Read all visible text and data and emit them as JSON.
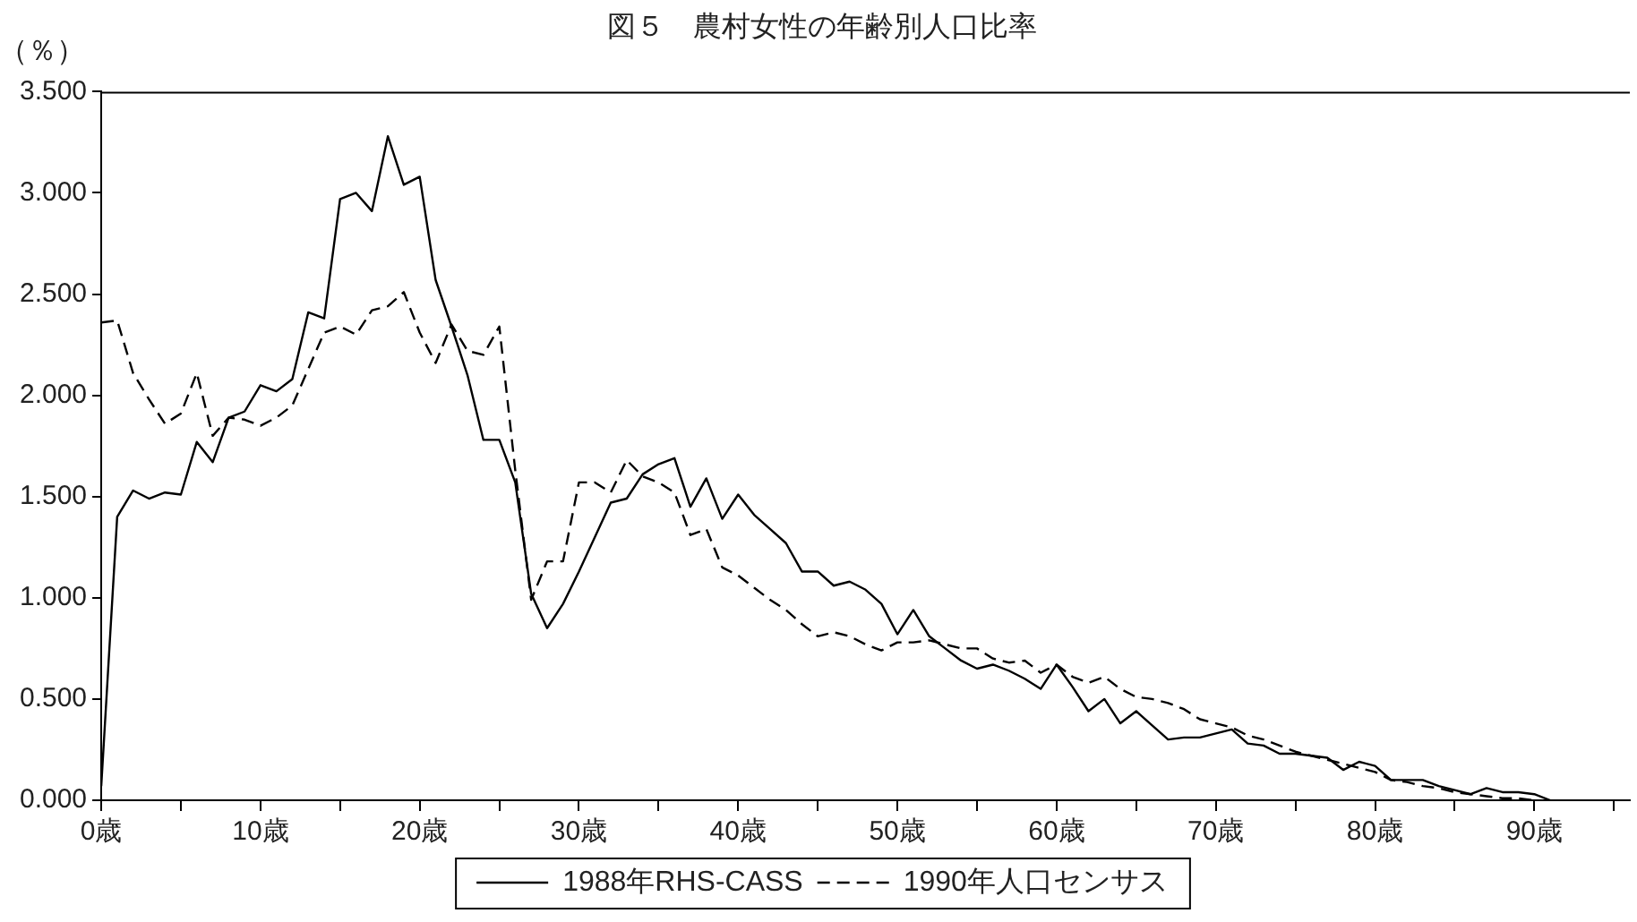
{
  "chart_data": {
    "type": "line",
    "title": "図５　農村女性の年齢別人口比率",
    "ylabel": "（％）",
    "x": [
      0,
      1,
      2,
      3,
      4,
      5,
      6,
      7,
      8,
      9,
      10,
      11,
      12,
      13,
      14,
      15,
      16,
      17,
      18,
      19,
      20,
      21,
      22,
      23,
      24,
      25,
      26,
      27,
      28,
      29,
      30,
      31,
      32,
      33,
      34,
      35,
      36,
      37,
      38,
      39,
      40,
      41,
      42,
      43,
      44,
      45,
      46,
      47,
      48,
      49,
      50,
      51,
      52,
      53,
      54,
      55,
      56,
      57,
      58,
      59,
      60,
      61,
      62,
      63,
      64,
      65,
      66,
      67,
      68,
      69,
      70,
      71,
      72,
      73,
      74,
      75,
      76,
      77,
      78,
      79,
      80,
      81,
      82,
      83,
      84,
      85,
      86,
      87,
      88,
      89,
      90,
      91
    ],
    "series": [
      {
        "name": "1988年RHS-CASS",
        "color": "#000000",
        "line_style": "solid",
        "values": [
          0.07,
          1.4,
          1.53,
          1.49,
          1.52,
          1.51,
          1.77,
          1.67,
          1.89,
          1.92,
          2.05,
          2.02,
          2.08,
          2.41,
          2.38,
          2.97,
          3.0,
          2.91,
          3.28,
          3.04,
          3.08,
          2.57,
          2.34,
          2.1,
          1.78,
          1.78,
          1.57,
          1.02,
          0.85,
          0.97,
          1.13,
          1.3,
          1.47,
          1.49,
          1.61,
          1.66,
          1.69,
          1.45,
          1.59,
          1.39,
          1.51,
          1.41,
          1.34,
          1.27,
          1.13,
          1.13,
          1.06,
          1.08,
          1.04,
          0.97,
          0.82,
          0.94,
          0.81,
          0.75,
          0.69,
          0.65,
          0.67,
          0.64,
          0.6,
          0.55,
          0.67,
          0.56,
          0.44,
          0.5,
          0.38,
          0.44,
          0.37,
          0.3,
          0.31,
          0.31,
          0.33,
          0.35,
          0.28,
          0.27,
          0.23,
          0.23,
          0.22,
          0.21,
          0.15,
          0.19,
          0.17,
          0.1,
          0.1,
          0.1,
          0.07,
          0.05,
          0.03,
          0.06,
          0.04,
          0.04,
          0.03,
          0.0
        ]
      },
      {
        "name": "1990年人口センサス",
        "color": "#000000",
        "line_style": "dashed",
        "values": [
          2.36,
          2.37,
          2.11,
          1.98,
          1.86,
          1.91,
          2.11,
          1.8,
          1.89,
          1.88,
          1.85,
          1.89,
          1.95,
          2.13,
          2.31,
          2.34,
          2.3,
          2.42,
          2.44,
          2.51,
          2.31,
          2.16,
          2.35,
          2.22,
          2.2,
          2.34,
          1.63,
          0.99,
          1.18,
          1.18,
          1.57,
          1.57,
          1.52,
          1.68,
          1.6,
          1.57,
          1.52,
          1.31,
          1.34,
          1.15,
          1.11,
          1.05,
          0.99,
          0.94,
          0.87,
          0.81,
          0.83,
          0.81,
          0.77,
          0.74,
          0.78,
          0.78,
          0.79,
          0.77,
          0.75,
          0.75,
          0.7,
          0.68,
          0.69,
          0.63,
          0.67,
          0.61,
          0.58,
          0.61,
          0.55,
          0.51,
          0.5,
          0.48,
          0.45,
          0.4,
          0.38,
          0.36,
          0.32,
          0.3,
          0.27,
          0.24,
          0.22,
          0.2,
          0.18,
          0.16,
          0.14,
          0.1,
          0.09,
          0.07,
          0.06,
          0.04,
          0.03,
          0.02,
          0.01,
          0.01,
          0.0,
          null
        ]
      }
    ],
    "xlim": [
      0,
      96
    ],
    "xticks": [
      {
        "value": 0,
        "label": "0歳"
      },
      {
        "value": 5,
        "label": null
      },
      {
        "value": 10,
        "label": "10歳"
      },
      {
        "value": 15,
        "label": null
      },
      {
        "value": 20,
        "label": "20歳"
      },
      {
        "value": 25,
        "label": null
      },
      {
        "value": 30,
        "label": "30歳"
      },
      {
        "value": 35,
        "label": null
      },
      {
        "value": 40,
        "label": "40歳"
      },
      {
        "value": 45,
        "label": null
      },
      {
        "value": 50,
        "label": "50歳"
      },
      {
        "value": 55,
        "label": null
      },
      {
        "value": 60,
        "label": "60歳"
      },
      {
        "value": 65,
        "label": null
      },
      {
        "value": 70,
        "label": "70歳"
      },
      {
        "value": 75,
        "label": null
      },
      {
        "value": 80,
        "label": "80歳"
      },
      {
        "value": 85,
        "label": null
      },
      {
        "value": 90,
        "label": "90歳"
      },
      {
        "value": 95,
        "label": null
      }
    ],
    "ylim": [
      0,
      3.5
    ],
    "yticks": [
      {
        "value": 0,
        "label": "0.000"
      },
      {
        "value": 0.5,
        "label": "0.500"
      },
      {
        "value": 1,
        "label": "1.000"
      },
      {
        "value": 1.5,
        "label": "1.500"
      },
      {
        "value": 2,
        "label": "2.000"
      },
      {
        "value": 2.5,
        "label": "2.500"
      },
      {
        "value": 3,
        "label": "3.000"
      },
      {
        "value": 3.5,
        "label": "3.500"
      }
    ],
    "grid": false,
    "legend": "bottom"
  }
}
